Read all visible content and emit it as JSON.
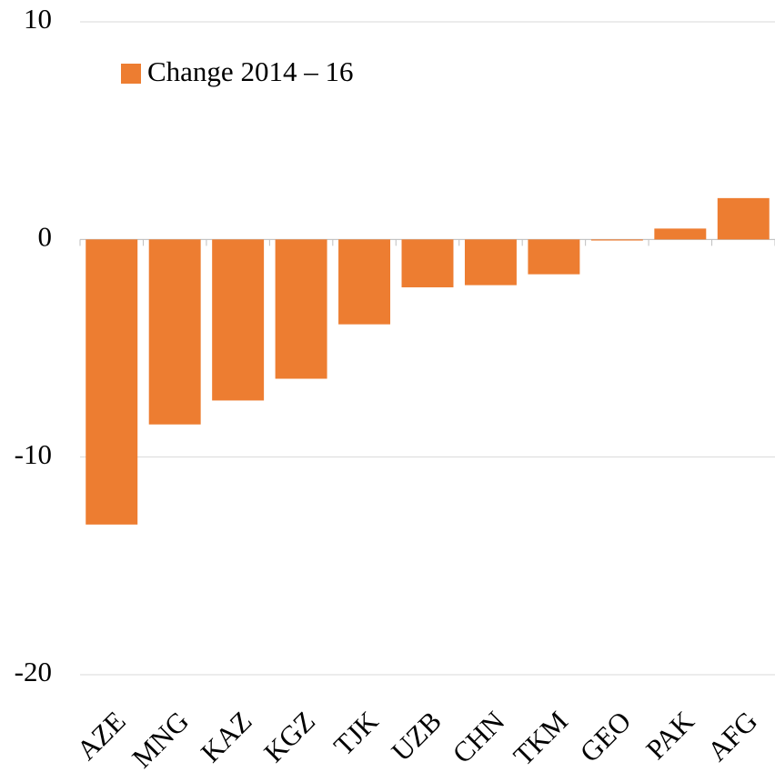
{
  "chart_data": {
    "type": "bar",
    "categories": [
      "AZE",
      "MNG",
      "KAZ",
      "KGZ",
      "TJK",
      "UZB",
      "CHN",
      "TKM",
      "GEO",
      "PAK",
      "AFG"
    ],
    "series": [
      {
        "name": "Change 2014 – 16",
        "color": "#ed7d31",
        "values": [
          -13.1,
          -8.5,
          -7.4,
          -6.4,
          -3.9,
          -2.2,
          -2.1,
          -1.6,
          -0.05,
          0.5,
          1.9
        ]
      }
    ],
    "ylim": [
      -20,
      10
    ],
    "yticks": [
      -20,
      -10,
      0,
      10
    ],
    "grid": true,
    "legend": "top-left"
  }
}
